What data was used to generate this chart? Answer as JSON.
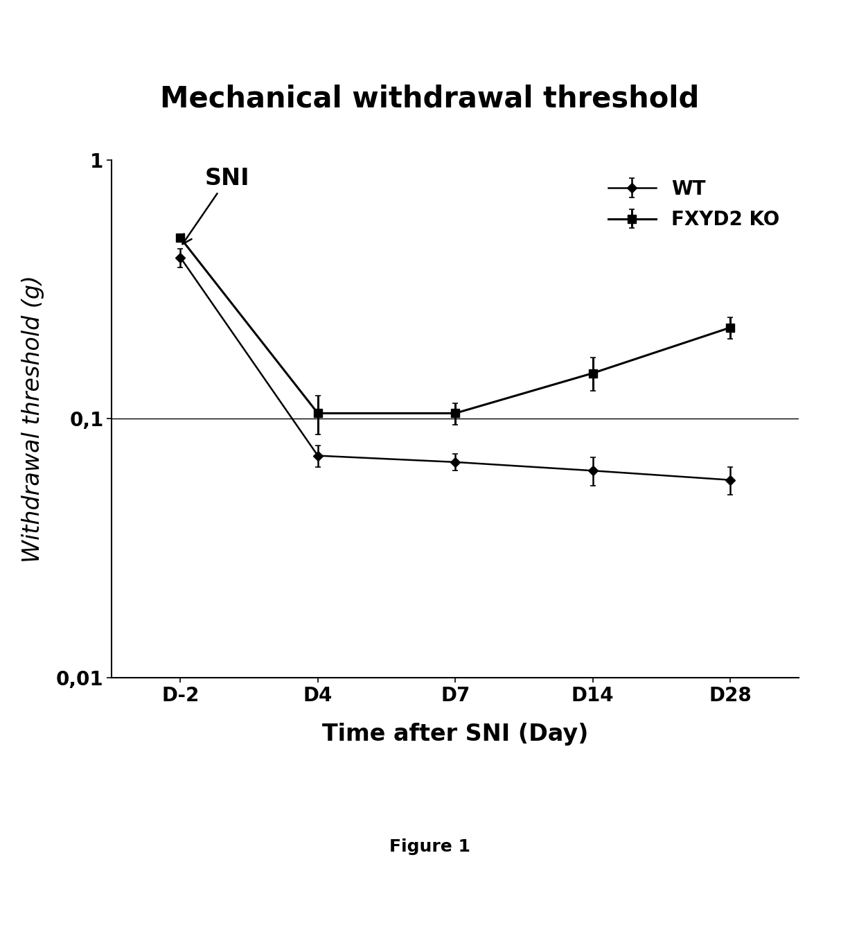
{
  "title": "Mechanical withdrawal threshold",
  "xlabel": "Time after SNI (Day)",
  "ylabel": "Withdrawal threshold (g)",
  "figure_caption": "Figure 1",
  "x_positions": [
    0,
    1,
    2,
    3,
    4
  ],
  "x_labels": [
    "D-2",
    "D4",
    "D7",
    "D14",
    "D28"
  ],
  "wt_values": [
    0.42,
    0.072,
    0.068,
    0.063,
    0.058
  ],
  "wt_errors": [
    0.035,
    0.007,
    0.005,
    0.008,
    0.007
  ],
  "ko_values": [
    0.5,
    0.105,
    0.105,
    0.15,
    0.225
  ],
  "ko_errors": [
    0.015,
    0.018,
    0.01,
    0.022,
    0.022
  ],
  "hline_y": 0.1,
  "ylim_min": 0.01,
  "ylim_max": 1.0,
  "line_color": "#000000",
  "background_color": "#ffffff",
  "title_fontsize": 30,
  "label_fontsize": 24,
  "tick_fontsize": 20,
  "legend_fontsize": 20,
  "caption_fontsize": 18,
  "sni_annotation": "SNI",
  "legend_labels": [
    "WT",
    "FXYD2 KO"
  ]
}
